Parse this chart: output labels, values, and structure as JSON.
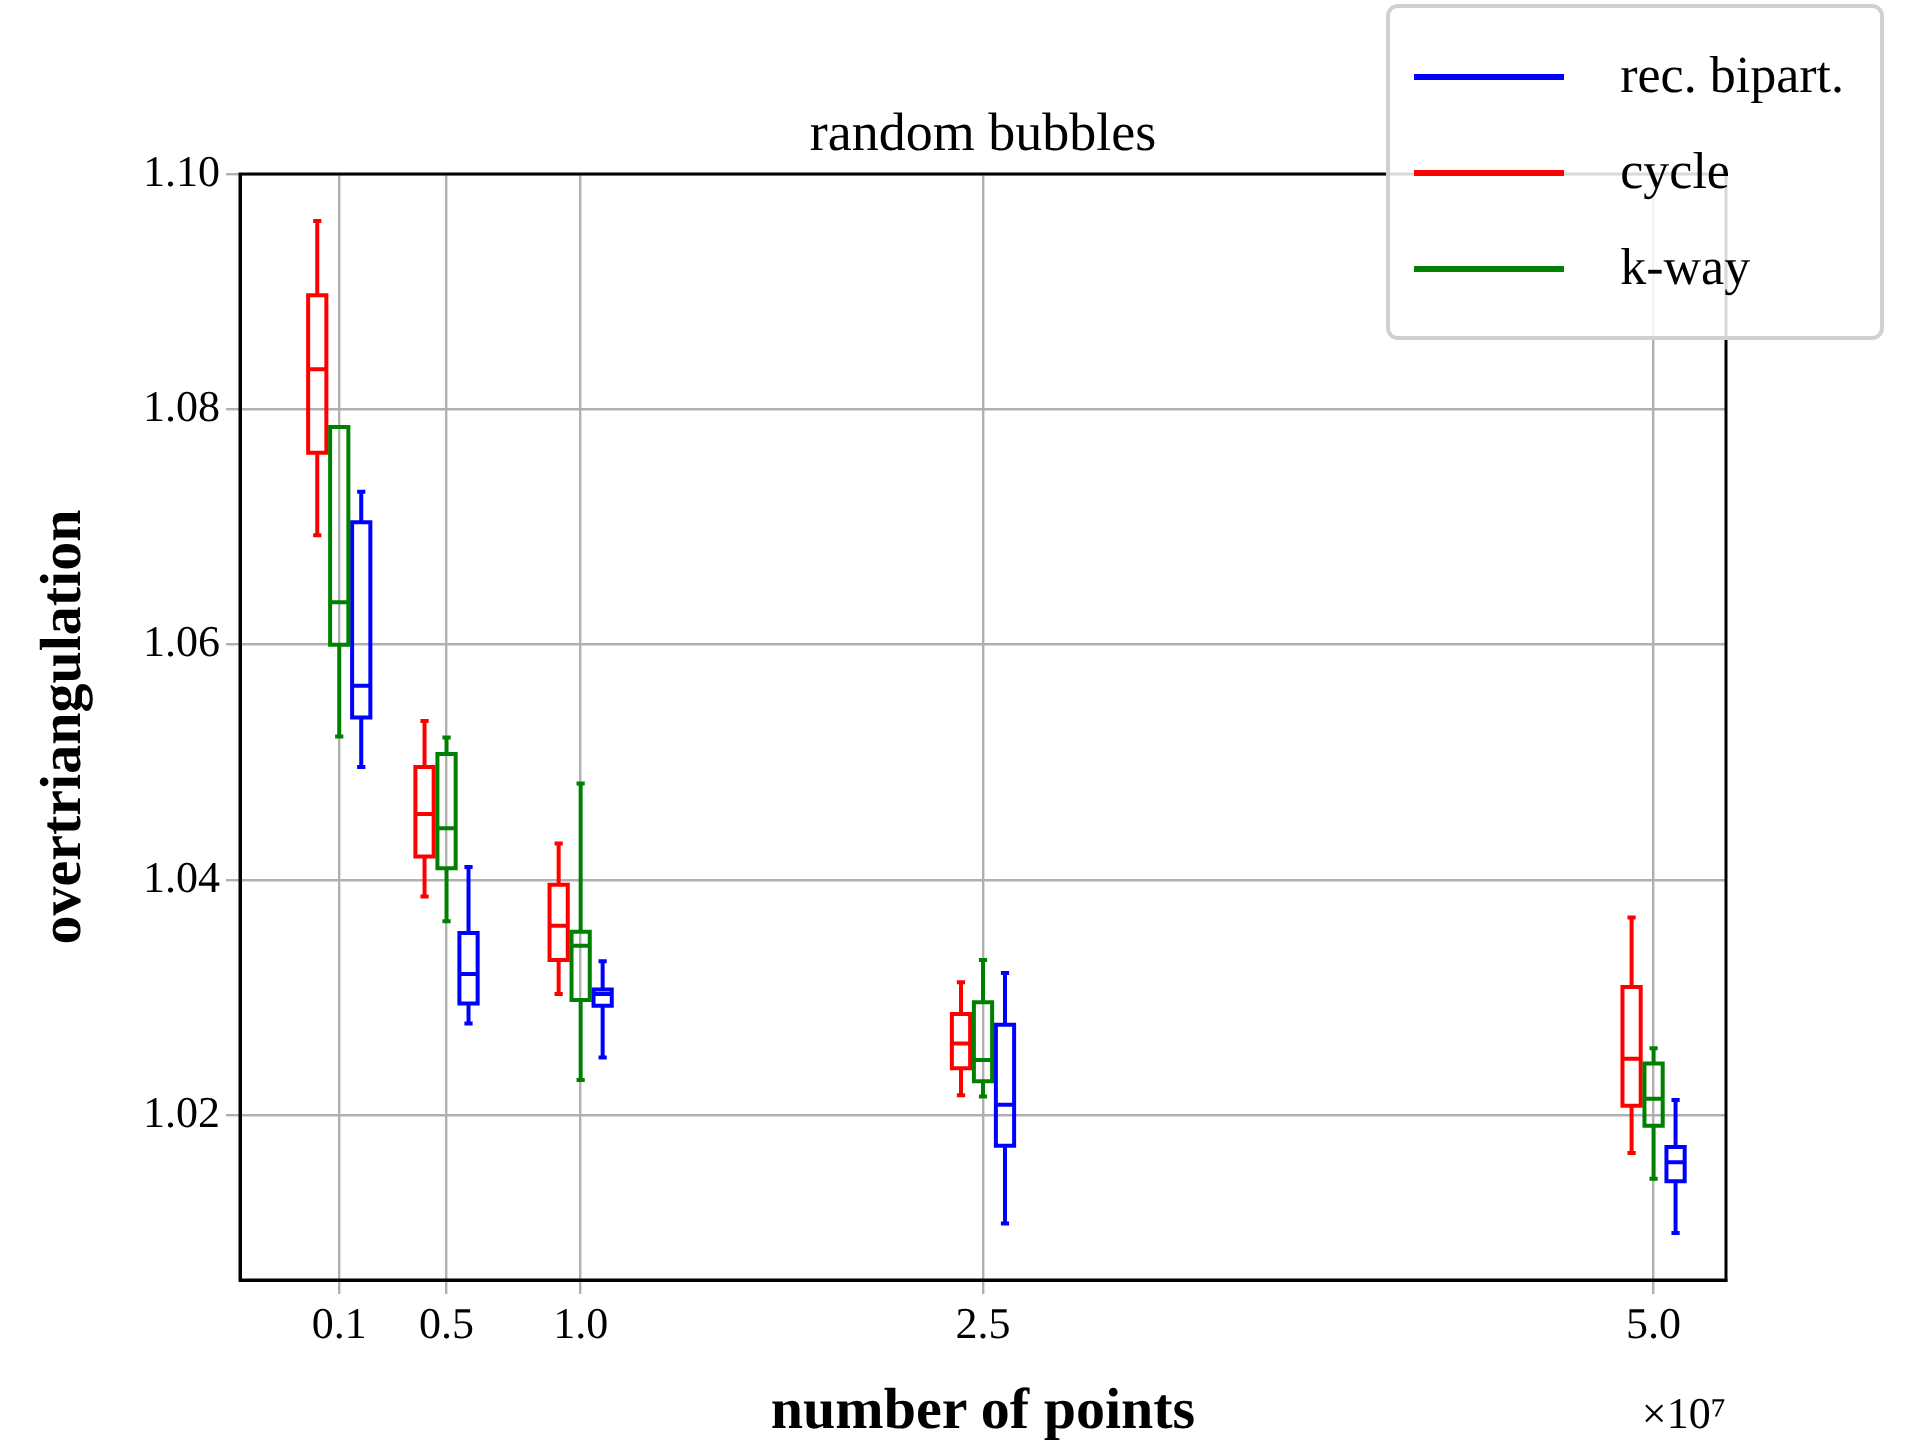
{
  "chart_data": {
    "type": "box",
    "title": "random bubbles",
    "xlabel": "number of points",
    "ylabel": "overtriangulation",
    "x": [
      0.1,
      0.5,
      1.0,
      2.5,
      5.0
    ],
    "xlim": [
      -0.27,
      5.27
    ],
    "xticks": [
      0.1,
      0.5,
      {
        "value": 1.0,
        "label": "1.0"
      },
      2.5,
      {
        "value": 5.0,
        "label": "5.0"
      }
    ],
    "ylim": [
      1.006,
      1.1
    ],
    "yticks": [
      1.02,
      1.04,
      1.06,
      1.08,
      {
        "value": 1.1,
        "label": "1.10"
      }
    ],
    "grid": true,
    "legend": "top right",
    "annotations": [
      "×10⁷"
    ],
    "series": [
      {
        "name": "rec. bipart.",
        "color": "#0000ff",
        "boxes": [
          {
            "low": 1.0496,
            "q1": 1.0538,
            "median": 1.0565,
            "q3": 1.0704,
            "high": 1.073
          },
          {
            "low": 1.0278,
            "q1": 1.0295,
            "median": 1.032,
            "q3": 1.0355,
            "high": 1.0411
          },
          {
            "low": 1.0249,
            "q1": 1.0293,
            "median": 1.0303,
            "q3": 1.0307,
            "high": 1.0331
          },
          {
            "low": 1.0108,
            "q1": 1.0174,
            "median": 1.0209,
            "q3": 1.0277,
            "high": 1.0321
          },
          {
            "low": 1.01,
            "q1": 1.0144,
            "median": 1.016,
            "q3": 1.0173,
            "high": 1.0213
          }
        ]
      },
      {
        "name": "cycle",
        "color": "#ff0000",
        "boxes": [
          {
            "low": 1.0693,
            "q1": 1.0763,
            "median": 1.0834,
            "q3": 1.0897,
            "high": 1.096
          },
          {
            "low": 1.0386,
            "q1": 1.042,
            "median": 1.0456,
            "q3": 1.0496,
            "high": 1.0535
          },
          {
            "low": 1.0303,
            "q1": 1.0332,
            "median": 1.0361,
            "q3": 1.0396,
            "high": 1.0431
          },
          {
            "low": 1.0217,
            "q1": 1.024,
            "median": 1.0261,
            "q3": 1.0286,
            "high": 1.0313
          },
          {
            "low": 1.0168,
            "q1": 1.0208,
            "median": 1.0248,
            "q3": 1.0309,
            "high": 1.0368
          }
        ]
      },
      {
        "name": "k-way",
        "color": "#008000",
        "boxes": [
          {
            "low": 1.0522,
            "q1": 1.06,
            "median": 1.0636,
            "q3": 1.0785,
            "high": 1.0785
          },
          {
            "low": 1.0365,
            "q1": 1.041,
            "median": 1.0444,
            "q3": 1.0507,
            "high": 1.0521
          },
          {
            "low": 1.023,
            "q1": 1.0298,
            "median": 1.0344,
            "q3": 1.0356,
            "high": 1.0482
          },
          {
            "low": 1.0216,
            "q1": 1.0229,
            "median": 1.0247,
            "q3": 1.0296,
            "high": 1.0332
          },
          {
            "low": 1.0146,
            "q1": 1.0191,
            "median": 1.0214,
            "q3": 1.0244,
            "high": 1.0257
          }
        ]
      }
    ]
  }
}
